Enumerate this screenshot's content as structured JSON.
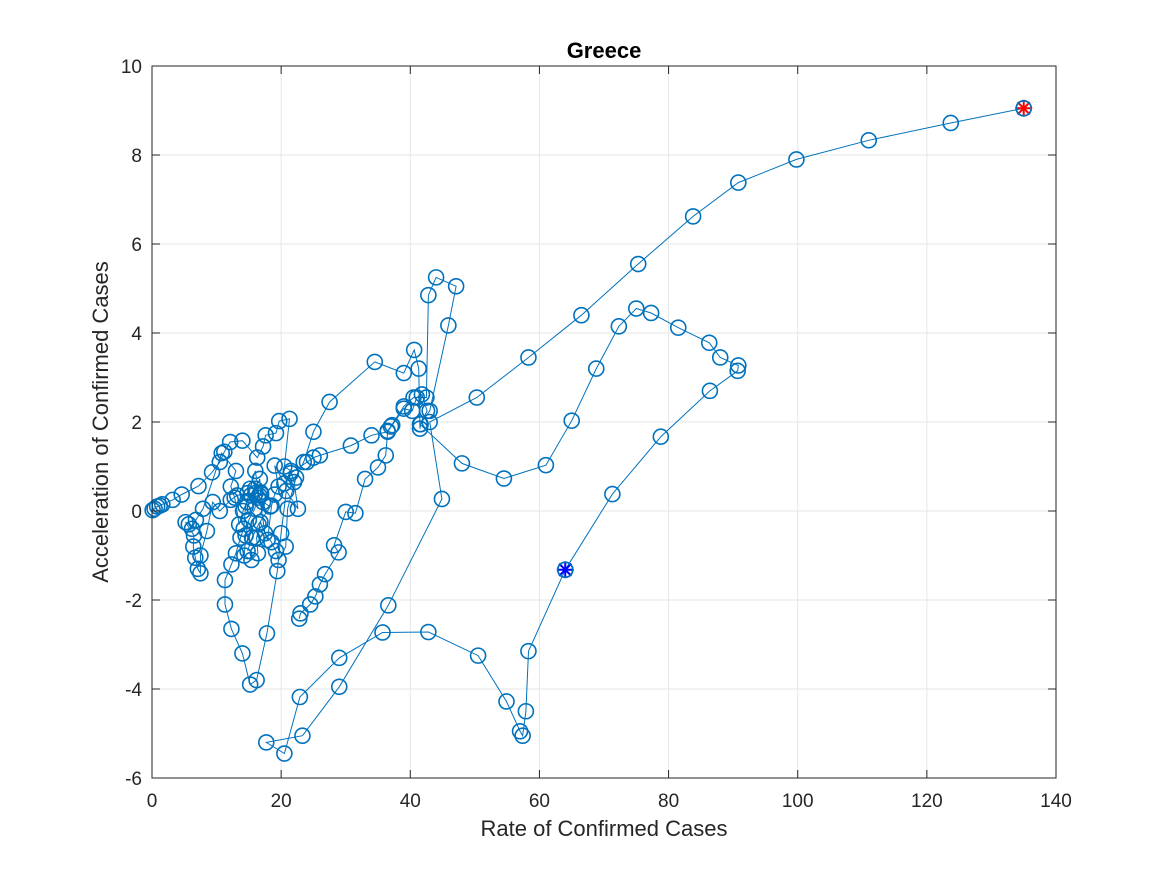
{
  "chart_data": {
    "type": "line",
    "title": "Greece",
    "xlabel": "Rate of Confirmed Cases",
    "ylabel": "Acceleration of Confirmed Cases",
    "xlim": [
      0,
      140
    ],
    "ylim": [
      -6,
      10
    ],
    "xticks": [
      0,
      20,
      40,
      60,
      80,
      100,
      120,
      140
    ],
    "xtick_labels": [
      "0",
      "20",
      "40",
      "60",
      "80",
      "100",
      "120",
      "140"
    ],
    "yticks": [
      -6,
      -4,
      -2,
      0,
      2,
      4,
      6,
      8,
      10
    ],
    "ytick_labels": [
      "-6",
      "-4",
      "-2",
      "0",
      "2",
      "4",
      "6",
      "8",
      "10"
    ],
    "grid": true,
    "series": [
      {
        "marker": "circle",
        "color": "#0072BD",
        "points": [
          [
            0.1,
            0.02
          ],
          [
            0.4,
            0.05
          ],
          [
            0.8,
            0.1
          ],
          [
            1.2,
            0.12
          ],
          [
            1.6,
            0.15
          ],
          [
            3.2,
            0.25
          ],
          [
            4.6,
            0.37
          ],
          [
            7.2,
            0.56
          ],
          [
            9.3,
            0.87
          ],
          [
            10.5,
            1.1
          ],
          [
            11.2,
            1.33
          ],
          [
            12.1,
            1.55
          ],
          [
            14.0,
            1.58
          ],
          [
            16.3,
            1.2
          ],
          [
            17.2,
            1.45
          ],
          [
            17.6,
            1.7
          ],
          [
            19.2,
            1.75
          ],
          [
            19.7,
            2.02
          ],
          [
            21.3,
            2.07
          ],
          [
            20.5,
            1.0
          ],
          [
            21.5,
            0.9
          ],
          [
            22.0,
            0.65
          ],
          [
            22.6,
            0.05
          ],
          [
            20.8,
            0.45
          ],
          [
            20.0,
            -0.5
          ],
          [
            19.4,
            -1.35
          ],
          [
            17.8,
            -2.75
          ],
          [
            16.2,
            -3.8
          ],
          [
            15.2,
            -3.9
          ],
          [
            14.0,
            -3.2
          ],
          [
            12.3,
            -2.65
          ],
          [
            11.3,
            -2.1
          ],
          [
            11.3,
            -1.55
          ],
          [
            12.3,
            -1.2
          ],
          [
            13.0,
            -0.95
          ],
          [
            13.7,
            -0.6
          ],
          [
            14.2,
            -0.4
          ],
          [
            14.5,
            0.1
          ],
          [
            15.3,
            0.35
          ],
          [
            16.0,
            0.5
          ],
          [
            16.7,
            0.72
          ],
          [
            16.8,
            0.42
          ],
          [
            16.4,
            0.3
          ],
          [
            15.9,
            0.05
          ],
          [
            15.0,
            -0.2
          ],
          [
            14.5,
            -0.55
          ],
          [
            14.3,
            -1.0
          ],
          [
            15.4,
            -1.1
          ],
          [
            16.4,
            -0.95
          ],
          [
            16.2,
            -0.6
          ],
          [
            16.8,
            -0.25
          ],
          [
            17.9,
            -0.65
          ],
          [
            18.5,
            0.12
          ],
          [
            19.0,
            0.37
          ],
          [
            19.6,
            0.55
          ],
          [
            19.0,
            1.02
          ],
          [
            20.5,
            0.62
          ],
          [
            21.5,
            0.85
          ],
          [
            24.0,
            1.1
          ],
          [
            25.0,
            1.2
          ],
          [
            26.0,
            1.25
          ],
          [
            30.8,
            1.47
          ],
          [
            34.0,
            1.7
          ],
          [
            36.5,
            1.78
          ],
          [
            37.2,
            1.93
          ],
          [
            39.0,
            2.3
          ],
          [
            40.3,
            2.25
          ],
          [
            41.0,
            2.55
          ],
          [
            41.8,
            2.62
          ],
          [
            42.6,
            2.25
          ],
          [
            41.6,
            1.95
          ],
          [
            41.5,
            1.85
          ],
          [
            41.3,
            3.2
          ],
          [
            40.6,
            3.62
          ],
          [
            39.0,
            3.1
          ],
          [
            34.5,
            3.35
          ],
          [
            27.5,
            2.45
          ],
          [
            25.0,
            1.78
          ],
          [
            23.5,
            1.1
          ],
          [
            22.3,
            0.75
          ],
          [
            21.0,
            0.05
          ],
          [
            20.7,
            -0.8
          ],
          [
            19.6,
            -1.1
          ],
          [
            19.2,
            -0.9
          ],
          [
            18.5,
            -0.7
          ],
          [
            17.5,
            -0.5
          ],
          [
            16.6,
            0.35
          ],
          [
            16.0,
            0.9
          ],
          [
            15.2,
            0.5
          ],
          [
            14.7,
            0.2
          ],
          [
            14.1,
            0.0
          ],
          [
            13.5,
            -0.3
          ],
          [
            12.8,
            0.3
          ],
          [
            12.2,
            0.55
          ],
          [
            13.0,
            0.9
          ],
          [
            10.8,
            1.3
          ],
          [
            7.9,
            0.05
          ],
          [
            6.8,
            -0.2
          ],
          [
            6.2,
            -0.4
          ],
          [
            5.7,
            -0.3
          ],
          [
            5.2,
            -0.25
          ],
          [
            6.5,
            -0.55
          ],
          [
            6.4,
            -0.8
          ],
          [
            6.7,
            -1.05
          ],
          [
            7.1,
            -1.3
          ],
          [
            7.5,
            -1.4
          ],
          [
            7.5,
            -1.0
          ],
          [
            8.5,
            -0.45
          ],
          [
            9.4,
            0.2
          ],
          [
            10.5,
            0.0
          ],
          [
            12.2,
            0.25
          ],
          [
            13.2,
            0.35
          ],
          [
            14.8,
            0.4
          ],
          [
            16.0,
            0.4
          ],
          [
            16.9,
            0.38
          ],
          [
            17.2,
            0.2
          ],
          [
            18.3,
            0.1
          ],
          [
            16.5,
            -0.3
          ],
          [
            15.5,
            -0.6
          ],
          [
            14.8,
            -0.9
          ]
        ]
      },
      {
        "marker": "circle",
        "color": "#0072BD",
        "points": [
          [
            22.8,
            -2.42
          ],
          [
            23.0,
            -2.3
          ],
          [
            24.5,
            -2.1
          ],
          [
            25.3,
            -1.92
          ],
          [
            26.0,
            -1.65
          ],
          [
            26.8,
            -1.42
          ],
          [
            28.9,
            -0.93
          ],
          [
            28.2,
            -0.77
          ],
          [
            30.0,
            -0.02
          ],
          [
            31.5,
            -0.05
          ],
          [
            33.0,
            0.72
          ],
          [
            35.0,
            0.98
          ],
          [
            36.2,
            1.25
          ],
          [
            36.5,
            1.8
          ],
          [
            37.0,
            1.9
          ],
          [
            39.0,
            2.35
          ],
          [
            40.5,
            2.55
          ],
          [
            42.5,
            2.55
          ],
          [
            42.8,
            4.85
          ],
          [
            44.0,
            5.25
          ],
          [
            47.1,
            5.05
          ],
          [
            45.9,
            4.17
          ],
          [
            43.0,
            2.25
          ],
          [
            41.5,
            1.95
          ],
          [
            48.0,
            1.07
          ],
          [
            54.5,
            0.73
          ],
          [
            61.0,
            1.03
          ],
          [
            65.0,
            2.03
          ],
          [
            68.8,
            3.2
          ],
          [
            72.3,
            4.15
          ],
          [
            75.0,
            4.55
          ],
          [
            77.3,
            4.45
          ],
          [
            81.5,
            4.12
          ],
          [
            86.3,
            3.78
          ],
          [
            88.0,
            3.45
          ],
          [
            90.8,
            3.27
          ],
          [
            90.7,
            3.15
          ],
          [
            86.4,
            2.7
          ],
          [
            78.8,
            1.67
          ],
          [
            71.3,
            0.38
          ],
          [
            64.0,
            -1.32
          ]
        ]
      },
      {
        "marker": "circle",
        "color": "#0072BD",
        "points": [
          [
            64.0,
            -1.32
          ],
          [
            58.3,
            -3.15
          ],
          [
            57.9,
            -4.5
          ],
          [
            57.4,
            -5.05
          ],
          [
            57.0,
            -4.95
          ],
          [
            54.9,
            -4.28
          ],
          [
            50.5,
            -3.25
          ],
          [
            42.8,
            -2.72
          ],
          [
            35.7,
            -2.73
          ],
          [
            29.0,
            -3.3
          ],
          [
            22.9,
            -4.18
          ],
          [
            20.5,
            -5.45
          ],
          [
            17.7,
            -5.2
          ],
          [
            23.3,
            -5.05
          ],
          [
            29.0,
            -3.95
          ],
          [
            36.6,
            -2.12
          ],
          [
            44.9,
            0.27
          ],
          [
            43.0,
            2.0
          ],
          [
            50.3,
            2.55
          ],
          [
            58.3,
            3.45
          ],
          [
            66.5,
            4.4
          ],
          [
            75.3,
            5.55
          ],
          [
            83.8,
            6.62
          ],
          [
            90.8,
            7.38
          ],
          [
            99.8,
            7.9
          ],
          [
            111.0,
            8.33
          ],
          [
            123.7,
            8.72
          ],
          [
            135.0,
            9.05
          ]
        ]
      }
    ],
    "markers": {
      "start": {
        "x": 64.0,
        "y": -1.32,
        "color": "#0000FF",
        "symbol": "asterisk-circle"
      },
      "end": {
        "x": 135.0,
        "y": 9.05,
        "color": "#FF0000",
        "symbol": "asterisk-circle"
      }
    }
  }
}
